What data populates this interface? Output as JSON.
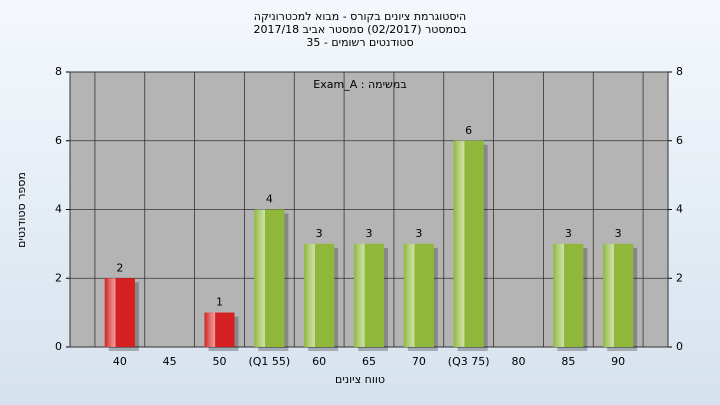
{
  "chart_data": {
    "type": "bar",
    "title": [
      "היסטוגרמת ציונים בקורס - מבוא למכטרוניקה",
      "בסמסטר  (02/2017)  סמסטר אביב 2017/18",
      "סטודנטים רשומים - 35"
    ],
    "annotation": "Exam_A : במשימה",
    "x_label": "טווח ציונים",
    "y_label": "מספר סטודנטים",
    "categories": [
      "40",
      "45",
      "50",
      "(Q1 55)",
      "60",
      "65",
      "70",
      "(Q3 75)",
      "80",
      "85",
      "90"
    ],
    "values": [
      2,
      0,
      1,
      4,
      3,
      3,
      3,
      6,
      0,
      3,
      3
    ],
    "value_labels": [
      "2",
      null,
      "1",
      "4",
      "3",
      "3",
      "3",
      "6",
      null,
      "3",
      "3"
    ],
    "colors": [
      "#d42020",
      "#d42020",
      "#d42020",
      "#8fb83a",
      "#8fb83a",
      "#8fb83a",
      "#8fb83a",
      "#8fb83a",
      "#8fb83a",
      "#8fb83a",
      "#8fb83a"
    ],
    "ylim": [
      0,
      8
    ],
    "yticks": [
      0,
      2,
      4,
      6,
      8
    ],
    "grid": true
  }
}
